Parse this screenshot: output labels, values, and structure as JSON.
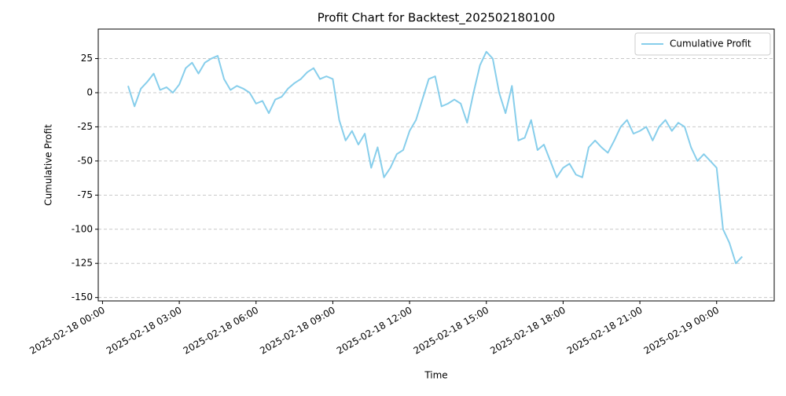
{
  "chart_data": {
    "type": "line",
    "title": "Profit Chart for Backtest_202502180100",
    "x_label": "Time",
    "y_label": "Cumulative Profit",
    "x": [
      "2025-02-18 01:00",
      "2025-02-18 01:15",
      "2025-02-18 01:30",
      "2025-02-18 01:45",
      "2025-02-18 02:00",
      "2025-02-18 02:15",
      "2025-02-18 02:30",
      "2025-02-18 02:45",
      "2025-02-18 03:00",
      "2025-02-18 03:15",
      "2025-02-18 03:30",
      "2025-02-18 03:45",
      "2025-02-18 04:00",
      "2025-02-18 04:15",
      "2025-02-18 04:30",
      "2025-02-18 04:45",
      "2025-02-18 05:00",
      "2025-02-18 05:15",
      "2025-02-18 05:30",
      "2025-02-18 05:45",
      "2025-02-18 06:00",
      "2025-02-18 06:15",
      "2025-02-18 06:30",
      "2025-02-18 06:45",
      "2025-02-18 07:00",
      "2025-02-18 07:15",
      "2025-02-18 07:30",
      "2025-02-18 07:45",
      "2025-02-18 08:00",
      "2025-02-18 08:15",
      "2025-02-18 08:30",
      "2025-02-18 08:45",
      "2025-02-18 09:00",
      "2025-02-18 09:15",
      "2025-02-18 09:30",
      "2025-02-18 09:45",
      "2025-02-18 10:00",
      "2025-02-18 10:15",
      "2025-02-18 10:30",
      "2025-02-18 10:45",
      "2025-02-18 11:00",
      "2025-02-18 11:15",
      "2025-02-18 11:30",
      "2025-02-18 11:45",
      "2025-02-18 12:00",
      "2025-02-18 12:15",
      "2025-02-18 12:30",
      "2025-02-18 12:45",
      "2025-02-18 13:00",
      "2025-02-18 13:15",
      "2025-02-18 13:30",
      "2025-02-18 13:45",
      "2025-02-18 14:00",
      "2025-02-18 14:15",
      "2025-02-18 14:30",
      "2025-02-18 14:45",
      "2025-02-18 15:00",
      "2025-02-18 15:15",
      "2025-02-18 15:30",
      "2025-02-18 15:45",
      "2025-02-18 16:00",
      "2025-02-18 16:15",
      "2025-02-18 16:30",
      "2025-02-18 16:45",
      "2025-02-18 17:00",
      "2025-02-18 17:15",
      "2025-02-18 17:30",
      "2025-02-18 17:45",
      "2025-02-18 18:00",
      "2025-02-18 18:15",
      "2025-02-18 18:30",
      "2025-02-18 18:45",
      "2025-02-18 19:00",
      "2025-02-18 19:15",
      "2025-02-18 19:30",
      "2025-02-18 19:45",
      "2025-02-18 20:00",
      "2025-02-18 20:15",
      "2025-02-18 20:30",
      "2025-02-18 20:45",
      "2025-02-18 21:00",
      "2025-02-18 21:15",
      "2025-02-18 21:30",
      "2025-02-18 21:45",
      "2025-02-18 22:00",
      "2025-02-18 22:15",
      "2025-02-18 22:30",
      "2025-02-18 22:45",
      "2025-02-18 23:00",
      "2025-02-18 23:15",
      "2025-02-18 23:30",
      "2025-02-18 23:45",
      "2025-02-19 00:00",
      "2025-02-19 00:15",
      "2025-02-19 00:30",
      "2025-02-19 00:45",
      "2025-02-19 01:00"
    ],
    "series": [
      {
        "name": "Cumulative Profit",
        "color": "#87ceeb",
        "values": [
          5,
          -10,
          3,
          8,
          14,
          2,
          4,
          0,
          6,
          18,
          22,
          14,
          22,
          25,
          27,
          10,
          2,
          5,
          3,
          0,
          -8,
          -6,
          -15,
          -5,
          -3,
          3,
          7,
          10,
          15,
          18,
          10,
          12,
          10,
          -20,
          -35,
          -28,
          -38,
          -30,
          -55,
          -40,
          -62,
          -55,
          -45,
          -42,
          -28,
          -20,
          -5,
          10,
          12,
          -10,
          -8,
          -5,
          -8,
          -22,
          0,
          20,
          30,
          25,
          0,
          -15,
          5,
          -35,
          -33,
          -20,
          -42,
          -38,
          -50,
          -62,
          -55,
          -52,
          -60,
          -62,
          -40,
          -35,
          -40,
          -44,
          -35,
          -25,
          -20,
          -30,
          -28,
          -25,
          -35,
          -25,
          -20,
          -28,
          -22,
          -25,
          -40,
          -50,
          -45,
          -50,
          -55,
          -100,
          -110,
          -125,
          -120
        ]
      }
    ],
    "xlim": [
      "2025-02-17 23:50",
      "2025-02-19 02:15"
    ],
    "xticks": [
      "2025-02-18 00:00",
      "2025-02-18 03:00",
      "2025-02-18 06:00",
      "2025-02-18 09:00",
      "2025-02-18 12:00",
      "2025-02-18 15:00",
      "2025-02-18 18:00",
      "2025-02-18 21:00",
      "2025-02-19 00:00"
    ],
    "ylim": [
      -152.5,
      46.6
    ],
    "yticks": [
      -150,
      -125,
      -100,
      -75,
      -50,
      -25,
      0,
      25
    ],
    "grid": true,
    "legend": "upper right"
  }
}
